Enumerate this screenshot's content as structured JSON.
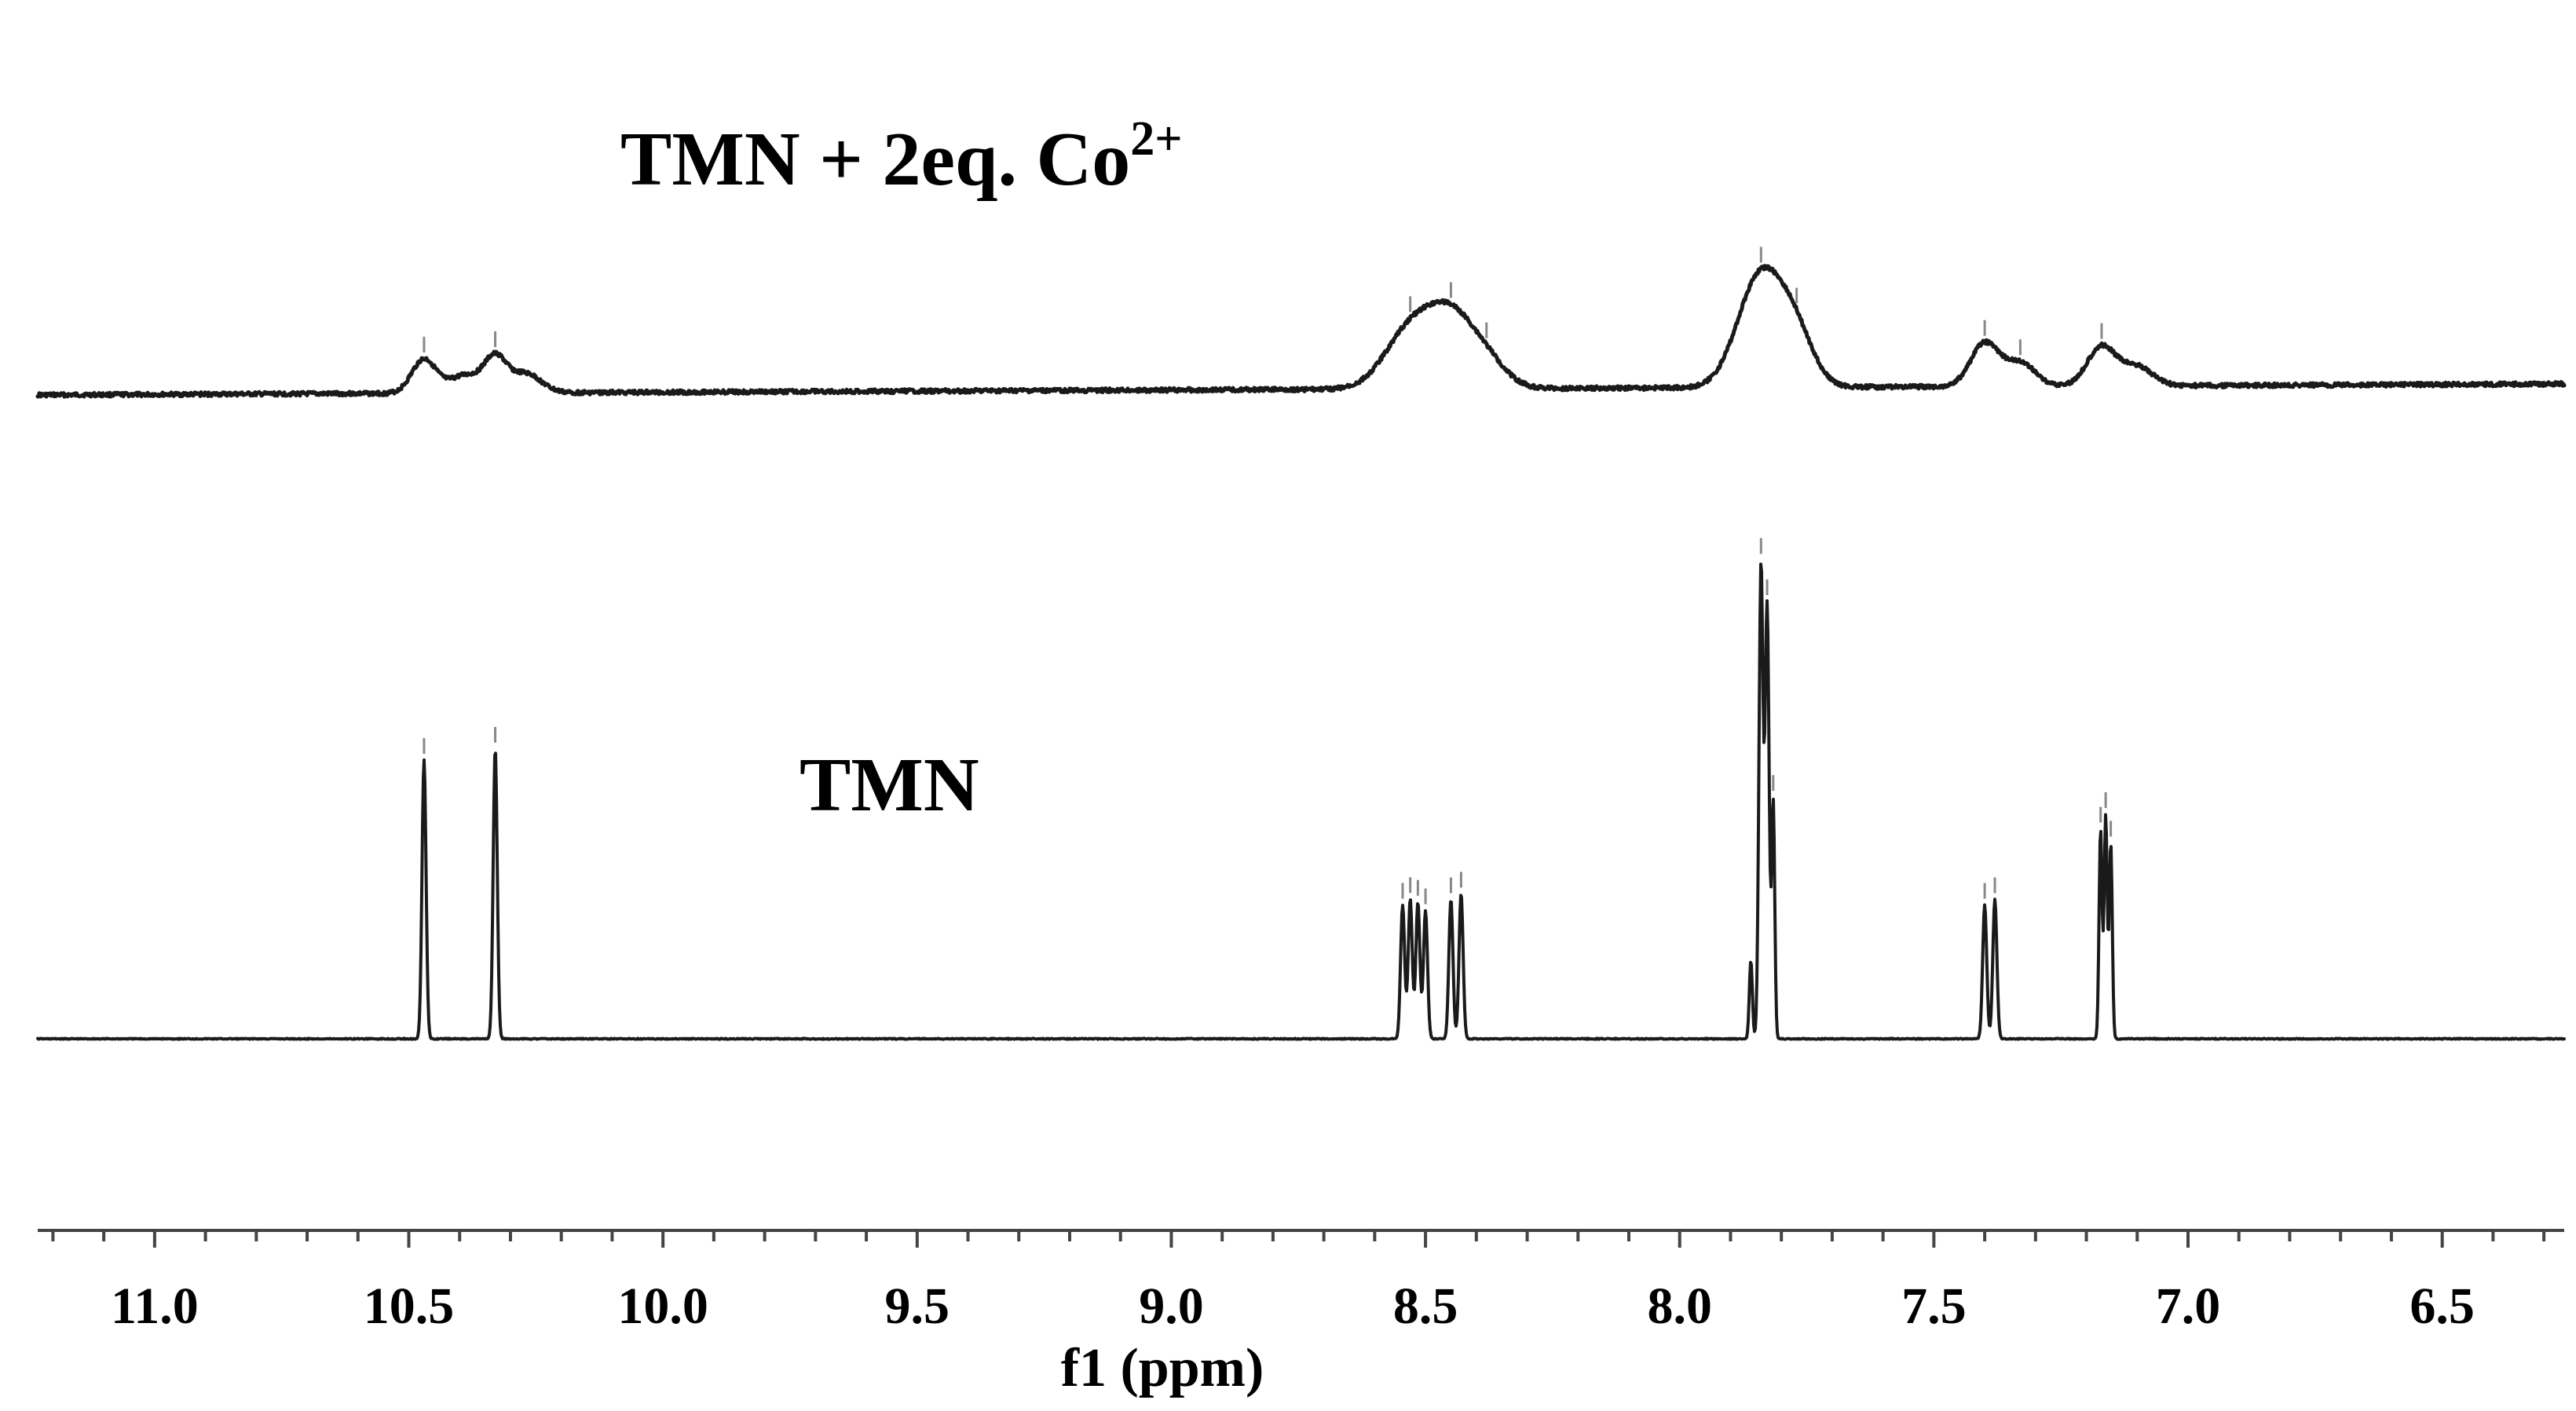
{
  "chart_data": {
    "type": "line",
    "title": "",
    "xlabel": "f1 (ppm)",
    "ylabel": "",
    "xlim": [
      11.23,
      6.26
    ],
    "x_reversed": true,
    "x_ticks": [
      11.0,
      10.5,
      10.0,
      9.5,
      9.0,
      8.5,
      8.0,
      7.5,
      7.0,
      6.5
    ],
    "x_tick_labels": [
      "11.0",
      "10.5",
      "10.0",
      "9.5",
      "9.0",
      "8.5",
      "8.0",
      "7.5",
      "7.0",
      "6.5"
    ],
    "x_minor_tick_step": 0.1,
    "grid": false,
    "series": [
      {
        "name": "TMN + 2eq. Co",
        "label_base": "TMN + 2eq. Co",
        "label_superscript": "2+",
        "color": "#1a1a1a",
        "broad": true,
        "peaks": [
          {
            "ppm": 10.47,
            "height": 0.62,
            "width": 0.024
          },
          {
            "ppm": 10.39,
            "height": 0.32,
            "width": 0.03
          },
          {
            "ppm": 10.33,
            "height": 0.63,
            "width": 0.022
          },
          {
            "ppm": 10.27,
            "height": 0.35,
            "width": 0.03
          },
          {
            "ppm": 8.53,
            "height": 1.05,
            "width": 0.05
          },
          {
            "ppm": 8.45,
            "height": 1.15,
            "width": 0.045
          },
          {
            "ppm": 8.38,
            "height": 0.45,
            "width": 0.04
          },
          {
            "ppm": 7.84,
            "height": 2.05,
            "width": 0.045
          },
          {
            "ppm": 7.77,
            "height": 0.8,
            "width": 0.035
          },
          {
            "ppm": 7.4,
            "height": 0.78,
            "width": 0.028
          },
          {
            "ppm": 7.33,
            "height": 0.42,
            "width": 0.03
          },
          {
            "ppm": 7.17,
            "height": 0.72,
            "width": 0.028
          },
          {
            "ppm": 7.1,
            "height": 0.35,
            "width": 0.03
          }
        ],
        "baseline": {
          "left": 0.0,
          "right": 0.2
        }
      },
      {
        "name": "TMN",
        "label_base": "TMN",
        "color": "#1a1a1a",
        "broad": false,
        "peaks": [
          {
            "ppm": 10.47,
            "height": 1.0,
            "width": 0.004
          },
          {
            "ppm": 10.33,
            "height": 1.04,
            "width": 0.004
          },
          {
            "ppm": 8.545,
            "height": 0.48,
            "width": 0.004
          },
          {
            "ppm": 8.53,
            "height": 0.5,
            "width": 0.004
          },
          {
            "ppm": 8.515,
            "height": 0.49,
            "width": 0.004
          },
          {
            "ppm": 8.5,
            "height": 0.46,
            "width": 0.004
          },
          {
            "ppm": 8.45,
            "height": 0.5,
            "width": 0.004
          },
          {
            "ppm": 8.43,
            "height": 0.52,
            "width": 0.004
          },
          {
            "ppm": 7.86,
            "height": 0.28,
            "width": 0.003
          },
          {
            "ppm": 7.84,
            "height": 1.7,
            "width": 0.004
          },
          {
            "ppm": 7.828,
            "height": 1.55,
            "width": 0.004
          },
          {
            "ppm": 7.816,
            "height": 0.85,
            "width": 0.003
          },
          {
            "ppm": 7.4,
            "height": 0.48,
            "width": 0.004
          },
          {
            "ppm": 7.38,
            "height": 0.5,
            "width": 0.004
          },
          {
            "ppm": 7.172,
            "height": 0.75,
            "width": 0.003
          },
          {
            "ppm": 7.162,
            "height": 0.8,
            "width": 0.003
          },
          {
            "ppm": 7.152,
            "height": 0.7,
            "width": 0.003
          }
        ],
        "baseline": {
          "left": 0.0,
          "right": 0.0
        }
      }
    ]
  }
}
